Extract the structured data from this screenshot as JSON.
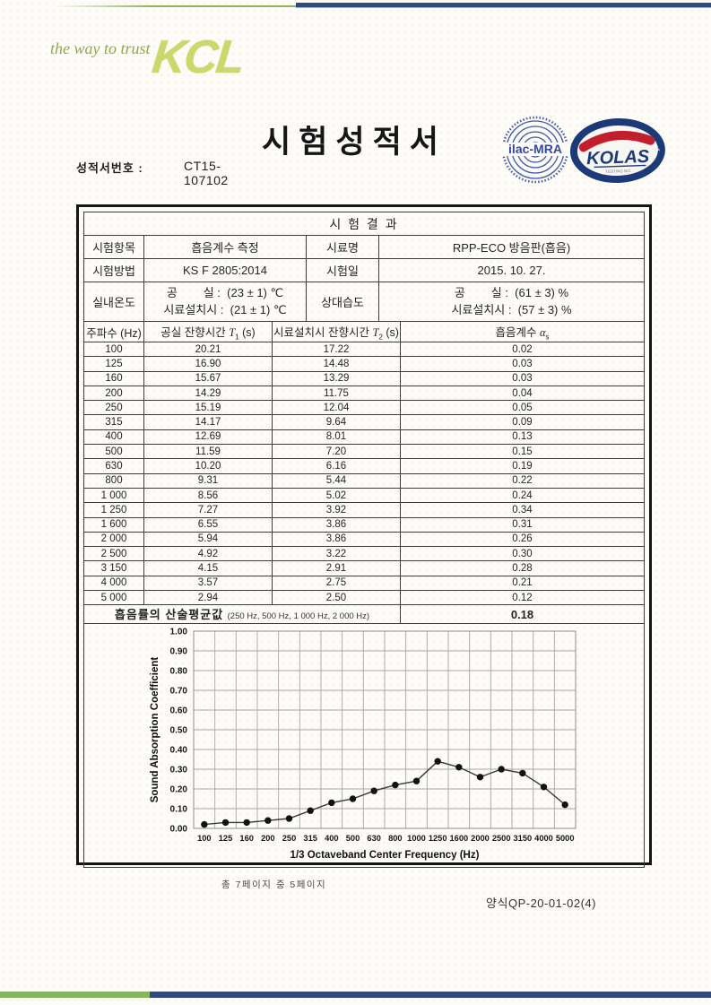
{
  "brand": {
    "tagline": "the way to trust",
    "logo": "KCL",
    "colors": {
      "green": "#8db560",
      "navy": "#31497c",
      "logo_green": "#c9d96b",
      "stamp_navy": "#27408f",
      "stamp_red": "#c11f2e"
    }
  },
  "header": {
    "title": "시험성적서",
    "report_no_label": "성적서번호 :",
    "report_no": "CT15-107102",
    "stamps": {
      "ilac_label": "ilac-MRA",
      "kolas_label": "KOLAS",
      "kolas_ring_text": "KOREA LABORATORY ACCREDITATION SCHEME",
      "kolas_sub_text": "TESTING NO."
    }
  },
  "table": {
    "section_title": "시 험 결 과",
    "info": {
      "row1": {
        "label1": "시험항목",
        "value1": "흡음계수 측정",
        "label2": "시료명",
        "value2": "RPP-ECO 방음판(흡음)"
      },
      "row2": {
        "label1": "시험방법",
        "value1": "KS F 2805:2014",
        "label2": "시험일",
        "value2": "2015. 10. 27."
      },
      "row3": {
        "label1": "실내온도",
        "value1": "공        실 :  (23 ± 1) ℃\n시료설치시 :  (21 ± 1) ℃",
        "label2": "상대습도",
        "value2": "공        실 :  (61 ± 3) %\n시료설치시 :  (57 ± 3) %"
      }
    },
    "headers": {
      "freq": "주파수 (Hz)",
      "t1_pre": "공실 잔향시간 ",
      "t1_sym": "T",
      "t1_sub": "1",
      "t1_post": " (s)",
      "t2_pre": "시료설치시 잔향시간 ",
      "t2_sym": "T",
      "t2_sub": "2",
      "t2_post": " (s)",
      "alpha_pre": "흡음계수 ",
      "alpha_sym": "α",
      "alpha_sub": "s"
    },
    "rows": [
      [
        "100",
        "20.21",
        "17.22",
        "0.02"
      ],
      [
        "125",
        "16.90",
        "14.48",
        "0.03"
      ],
      [
        "160",
        "15.67",
        "13.29",
        "0.03"
      ],
      [
        "200",
        "14.29",
        "11.75",
        "0.04"
      ],
      [
        "250",
        "15.19",
        "12.04",
        "0.05"
      ],
      [
        "315",
        "14.17",
        "9.64",
        "0.09"
      ],
      [
        "400",
        "12.69",
        "8.01",
        "0.13"
      ],
      [
        "500",
        "11.59",
        "7.20",
        "0.15"
      ],
      [
        "630",
        "10.20",
        "6.16",
        "0.19"
      ],
      [
        "800",
        "9.31",
        "5.44",
        "0.22"
      ],
      [
        "1 000",
        "8.56",
        "5.02",
        "0.24"
      ],
      [
        "1 250",
        "7.27",
        "3.92",
        "0.34"
      ],
      [
        "1 600",
        "6.55",
        "3.86",
        "0.31"
      ],
      [
        "2 000",
        "5.94",
        "3.86",
        "0.26"
      ],
      [
        "2 500",
        "4.92",
        "3.22",
        "0.30"
      ],
      [
        "3 150",
        "4.15",
        "2.91",
        "0.28"
      ],
      [
        "4 000",
        "3.57",
        "2.75",
        "0.21"
      ],
      [
        "5 000",
        "2.94",
        "2.50",
        "0.12"
      ]
    ],
    "average": {
      "label": "흡음률의 산술평균값",
      "note": "(250 Hz, 500 Hz, 1 000 Hz, 2 000 Hz)",
      "value": "0.18"
    }
  },
  "chart_data": {
    "type": "line",
    "x": [
      100,
      125,
      160,
      200,
      250,
      315,
      400,
      500,
      630,
      800,
      1000,
      1250,
      1600,
      2000,
      2500,
      3150,
      4000,
      5000
    ],
    "x_labels": [
      "100",
      "125",
      "160",
      "200",
      "250",
      "315",
      "400",
      "500",
      "630",
      "800",
      "1000",
      "1250",
      "1600",
      "2000",
      "2500",
      "3150",
      "4000",
      "5000"
    ],
    "values": [
      0.02,
      0.03,
      0.03,
      0.04,
      0.05,
      0.09,
      0.13,
      0.15,
      0.19,
      0.22,
      0.24,
      0.34,
      0.31,
      0.26,
      0.3,
      0.28,
      0.21,
      0.12
    ],
    "title": "",
    "xlabel": "1/3 Octaveband Center Frequency (Hz)",
    "ylabel": "Sound Absorption Coefficient",
    "ylim": [
      0,
      1.0
    ],
    "ytick_step": 0.1,
    "grid": true,
    "legend": "none",
    "line_color": "#3a3a3a",
    "marker": "circle",
    "marker_color": "#121212"
  },
  "footer": {
    "page_info": "총 7페이지 중 5페이지",
    "form_no": "양식QP-20-01-02(4)"
  }
}
